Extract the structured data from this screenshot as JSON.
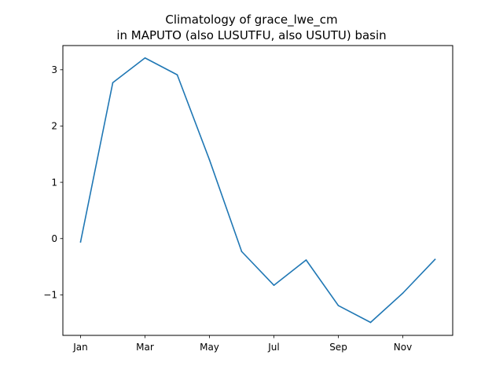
{
  "chart_data": {
    "type": "line",
    "title_line1": "Climatology of grace_lwe_cm",
    "title_line2": "in MAPUTO (also LUSUTFU, also USUTU) basin",
    "xlabel": "",
    "ylabel": "",
    "x": [
      "Jan",
      "Feb",
      "Mar",
      "Apr",
      "May",
      "Jun",
      "Jul",
      "Aug",
      "Sep",
      "Oct",
      "Nov",
      "Dec"
    ],
    "x_tick_labels": [
      "Jan",
      "Mar",
      "May",
      "Jul",
      "Sep",
      "Nov"
    ],
    "series": [
      {
        "color": "#1f77b4",
        "values": [
          -0.06,
          2.77,
          3.21,
          2.91,
          1.4,
          -0.23,
          -0.83,
          -0.38,
          -1.19,
          -1.49,
          -0.97,
          -0.37
        ]
      }
    ],
    "yticks": [
      -1,
      0,
      1,
      2,
      3
    ],
    "ytick_labels": [
      "−1",
      "0",
      "1",
      "2",
      "3"
    ],
    "ylim": [
      -1.72,
      3.43
    ],
    "grid": false,
    "legend": "none"
  }
}
